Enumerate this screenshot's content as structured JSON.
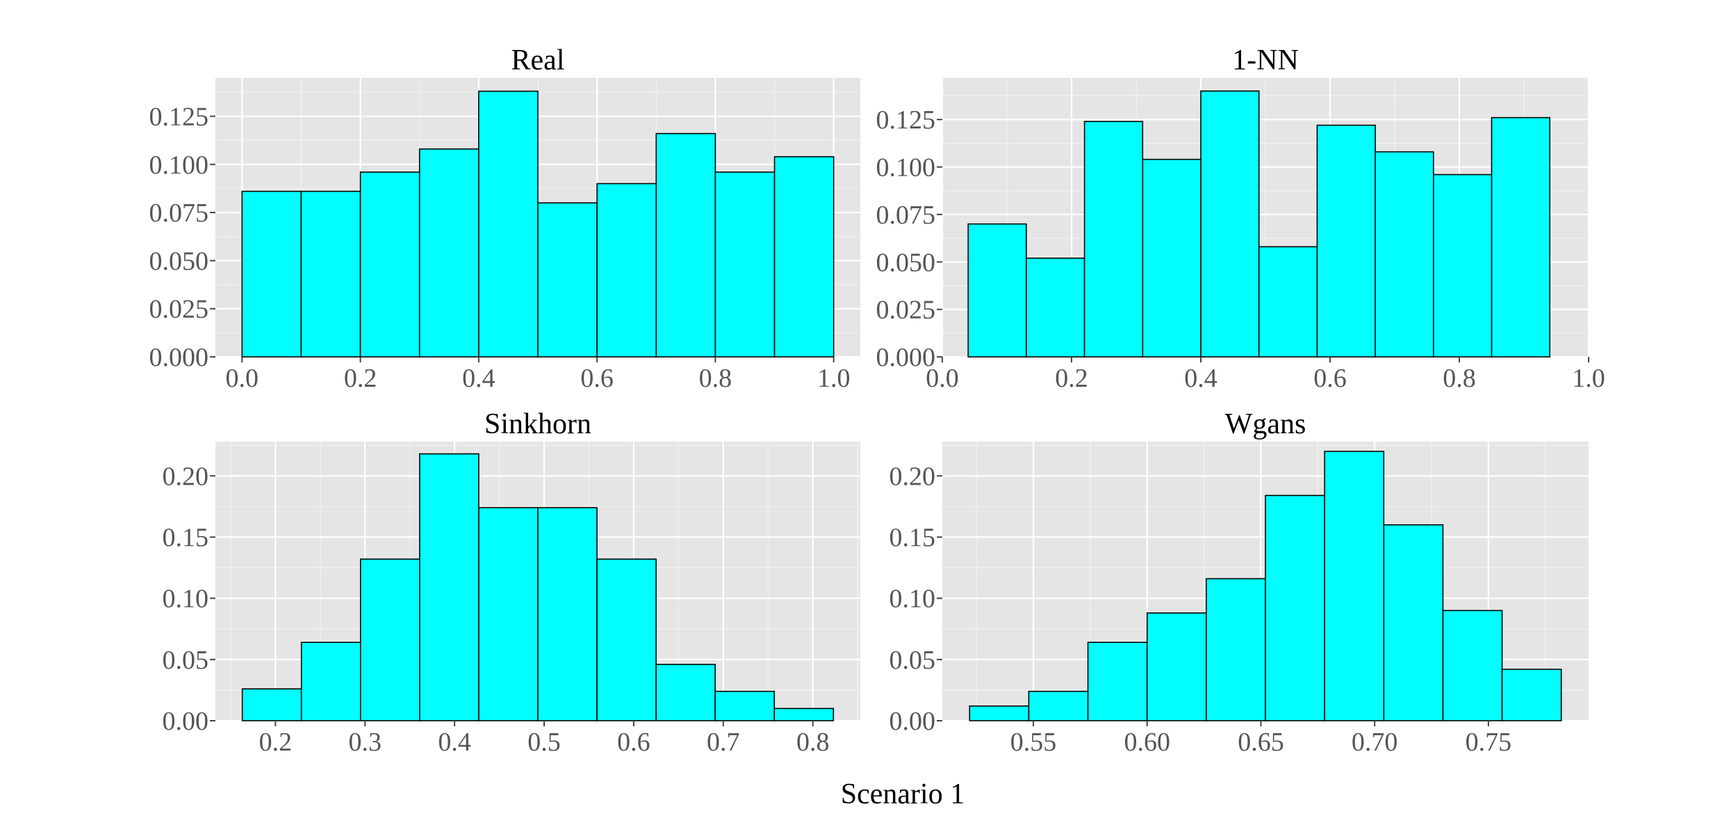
{
  "figure": {
    "caption": "Scenario 1",
    "bar_color": "#00ffff",
    "bar_edge_color": "#000000",
    "panel_background": "#e5e5e5"
  },
  "chart_data": [
    {
      "type": "bar",
      "title": "Real",
      "xlabel": "",
      "ylabel": "",
      "bin_edges": [
        0.0,
        0.1,
        0.2,
        0.3,
        0.4,
        0.5,
        0.6,
        0.7,
        0.8,
        0.9,
        1.0
      ],
      "values": [
        0.086,
        0.086,
        0.096,
        0.108,
        0.138,
        0.08,
        0.09,
        0.116,
        0.096,
        0.104
      ],
      "xlim": [
        -0.045,
        1.045
      ],
      "ylim": [
        0.0,
        0.145
      ],
      "xticks": [
        0.0,
        0.2,
        0.4,
        0.6,
        0.8,
        1.0
      ],
      "xtick_labels": [
        "0.0",
        "0.2",
        "0.4",
        "0.6",
        "0.8",
        "1.0"
      ],
      "yticks": [
        0.0,
        0.025,
        0.05,
        0.075,
        0.1,
        0.125
      ],
      "ytick_labels": [
        "0.000",
        "0.025",
        "0.050",
        "0.075",
        "0.100",
        "0.125"
      ],
      "grid": true
    },
    {
      "type": "bar",
      "title": "1-NN",
      "xlabel": "",
      "ylabel": "",
      "bin_edges": [
        0.04,
        0.13,
        0.22,
        0.31,
        0.4,
        0.49,
        0.58,
        0.67,
        0.76,
        0.85,
        0.94
      ],
      "values": [
        0.07,
        0.052,
        0.124,
        0.104,
        0.14,
        0.058,
        0.122,
        0.108,
        0.096,
        0.126
      ],
      "xlim": [
        0.0,
        1.0
      ],
      "ylim": [
        0.0,
        0.147
      ],
      "xticks": [
        0.0,
        0.2,
        0.4,
        0.6,
        0.8,
        1.0
      ],
      "xtick_labels": [
        "0.0",
        "0.2",
        "0.4",
        "0.6",
        "0.8",
        "1.0"
      ],
      "yticks": [
        0.0,
        0.025,
        0.05,
        0.075,
        0.1,
        0.125
      ],
      "ytick_labels": [
        "0.000",
        "0.025",
        "0.050",
        "0.075",
        "0.100",
        "0.125"
      ],
      "grid": true
    },
    {
      "type": "bar",
      "title": "Sinkhorn",
      "xlabel": "",
      "ylabel": "",
      "bin_edges": [
        0.163,
        0.229,
        0.295,
        0.361,
        0.427,
        0.493,
        0.559,
        0.625,
        0.691,
        0.757,
        0.823
      ],
      "values": [
        0.026,
        0.064,
        0.132,
        0.218,
        0.174,
        0.174,
        0.132,
        0.046,
        0.024,
        0.01
      ],
      "xlim": [
        0.133,
        0.853
      ],
      "ylim": [
        0.0,
        0.228
      ],
      "xticks": [
        0.2,
        0.3,
        0.4,
        0.5,
        0.6,
        0.7,
        0.8
      ],
      "xtick_labels": [
        "0.2",
        "0.3",
        "0.4",
        "0.5",
        "0.6",
        "0.7",
        "0.8"
      ],
      "yticks": [
        0.0,
        0.05,
        0.1,
        0.15,
        0.2
      ],
      "ytick_labels": [
        "0.00",
        "0.05",
        "0.10",
        "0.15",
        "0.20"
      ],
      "grid": true
    },
    {
      "type": "bar",
      "title": "Wgans",
      "xlabel": "",
      "ylabel": "",
      "bin_edges": [
        0.522,
        0.548,
        0.574,
        0.6,
        0.626,
        0.652,
        0.678,
        0.704,
        0.73,
        0.756,
        0.782
      ],
      "values": [
        0.012,
        0.024,
        0.064,
        0.088,
        0.116,
        0.184,
        0.22,
        0.16,
        0.09,
        0.042
      ],
      "xlim": [
        0.51,
        0.794
      ],
      "ylim": [
        0.0,
        0.228
      ],
      "xticks": [
        0.55,
        0.6,
        0.65,
        0.7,
        0.75
      ],
      "xtick_labels": [
        "0.55",
        "0.60",
        "0.65",
        "0.70",
        "0.75"
      ],
      "yticks": [
        0.0,
        0.05,
        0.1,
        0.15,
        0.2
      ],
      "ytick_labels": [
        "0.00",
        "0.05",
        "0.10",
        "0.15",
        "0.20"
      ],
      "grid": true
    }
  ]
}
